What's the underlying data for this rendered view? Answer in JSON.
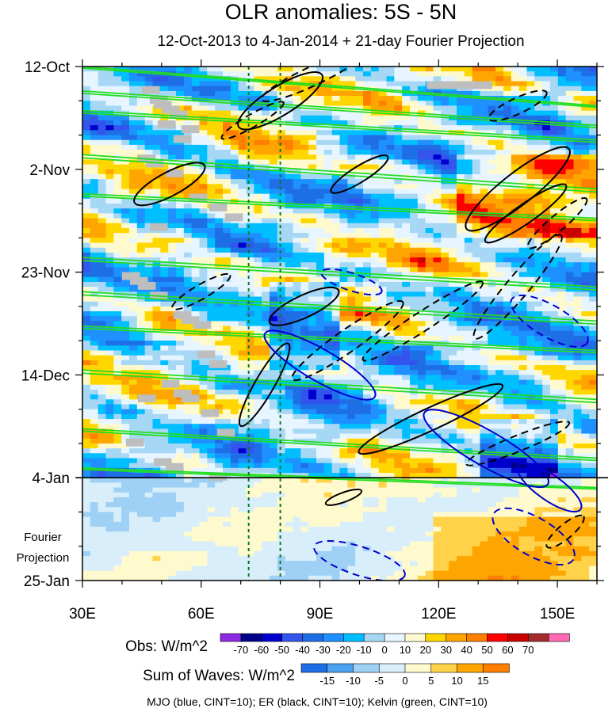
{
  "chart_data": {
    "type": "heatmap",
    "title": "OLR anomalies: 5S - 5N",
    "subtitle": "12-Oct-2013 to 4-Jan-2014 + 21-day Fourier Projection",
    "x_ticks": [
      "30E",
      "60E",
      "90E",
      "120E",
      "150E"
    ],
    "x_tick_values": [
      30,
      60,
      90,
      120,
      150
    ],
    "xlim": [
      30,
      160
    ],
    "y_ticks": [
      "12-Oct",
      "2-Nov",
      "23-Nov",
      "14-Dec",
      "4-Jan",
      "25-Jan"
    ],
    "y_tick_days": [
      0,
      21,
      42,
      63,
      84,
      105
    ],
    "ylim_days": [
      0,
      105
    ],
    "projection_start_day": 84,
    "projection_label": [
      "Fourier",
      "Projection"
    ],
    "reference_lines_x": [
      72,
      80
    ],
    "obs_colorbar": {
      "label": "Obs: W/m^2",
      "levels": [
        "-70",
        "-60",
        "-50",
        "-40",
        "-30",
        "-20",
        "-10",
        "0",
        "10",
        "20",
        "30",
        "40",
        "50",
        "60",
        "70"
      ],
      "colors": [
        "#8a2be2",
        "#00008b",
        "#0000cd",
        "#3355ee",
        "#1e6fe6",
        "#1e90ff",
        "#00bfff",
        "#a6d8f5",
        "#e6f5ff",
        "#fffacd",
        "#ffd700",
        "#ffa500",
        "#ff7f00",
        "#ff0000",
        "#c80000",
        "#a52a2a",
        "#ff69b4"
      ]
    },
    "waves_colorbar": {
      "label": "Sum of Waves: W/m^2",
      "levels": [
        "-15",
        "-10",
        "-5",
        "0",
        "5",
        "10",
        "15"
      ],
      "colors": [
        "#1e6fe6",
        "#4aa3f0",
        "#9fd0f5",
        "#d8eefa",
        "#fffacd",
        "#ffd24a",
        "#ffa500",
        "#ff7f00"
      ]
    },
    "footer": "MJO (blue, CINT=10); ER (black, CINT=10); Kelvin (green, CINT=10)",
    "contour_colors": {
      "mjo": "#0000cc",
      "er": "#000000",
      "kelvin": "#22dd22"
    }
  }
}
